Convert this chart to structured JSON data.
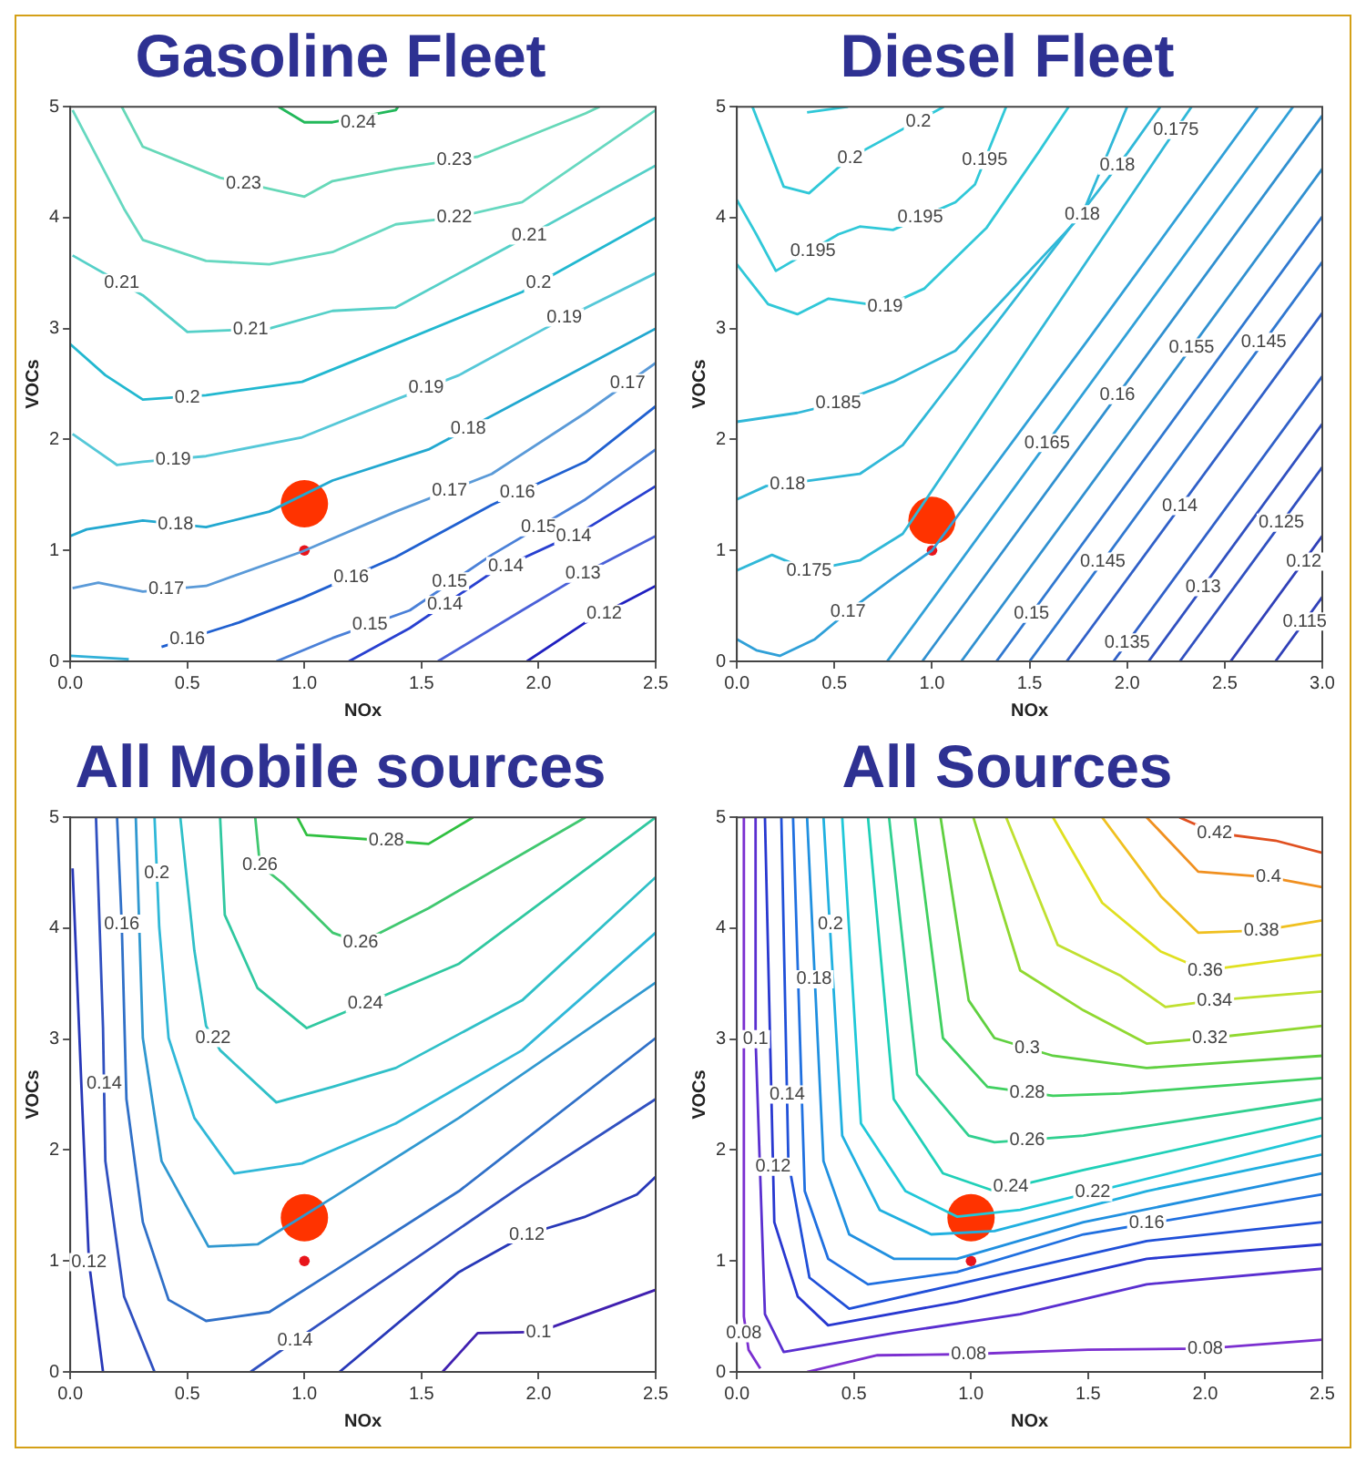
{
  "chart_data": [
    {
      "type": "line",
      "title": "Gasoline Fleet",
      "xlabel": "NOx",
      "ylabel": "VOCs",
      "xlim": [
        0,
        2.5
      ],
      "ylim": [
        0,
        5
      ],
      "xticks": [
        {
          "value": 0,
          "label": "0.0"
        },
        {
          "value": 0.5,
          "label": "0.5"
        },
        {
          "value": 1,
          "label": "1.0"
        },
        {
          "value": 1.5,
          "label": "1.5"
        },
        {
          "value": 2,
          "label": "2.0"
        },
        {
          "value": 2.5,
          "label": "2.5"
        }
      ],
      "yticks": [
        0,
        1,
        2,
        3,
        4,
        5
      ],
      "series": [
        {
          "color": "#22b85a",
          "x": [
            0.89,
            1.0,
            1.12,
            1.39,
            1.4
          ],
          "values": [
            5,
            4.86,
            4.86,
            4.97,
            5
          ]
        },
        {
          "color": "#66d8b8",
          "x": [
            0.22,
            0.31,
            0.64,
            1.0,
            1.12,
            1.39,
            1.74,
            2.2,
            2.26
          ],
          "values": [
            5,
            4.64,
            4.36,
            4.19,
            4.33,
            4.44,
            4.55,
            4.94,
            5
          ]
        },
        {
          "color": "#66d8c0",
          "x": [
            0.01,
            0.23,
            0.31,
            0.58,
            0.85,
            1.12,
            1.39,
            1.64,
            1.93,
            2.5
          ],
          "values": [
            4.97,
            4.08,
            3.8,
            3.61,
            3.58,
            3.69,
            3.94,
            4.0,
            4.14,
            4.97
          ]
        },
        {
          "color": "#55d0c8",
          "x": [
            0.01,
            0.31,
            0.5,
            0.85,
            1.12,
            1.39,
            1.88,
            2.5
          ],
          "values": [
            3.66,
            3.3,
            2.97,
            3.0,
            3.16,
            3.19,
            3.75,
            4.47
          ]
        },
        {
          "color": "#22b8d0",
          "x": [
            0,
            0.15,
            0.31,
            0.45,
            0.58,
            0.99,
            1.26,
            1.93,
            2.5
          ],
          "values": [
            2.86,
            2.58,
            2.36,
            2.38,
            2.4,
            2.52,
            2.75,
            3.33,
            4.0
          ]
        },
        {
          "color": "#55c8d8",
          "x": [
            0.01,
            0.2,
            0.31,
            0.58,
            0.99,
            1.39,
            1.66,
            2.07,
            2.5
          ],
          "values": [
            2.05,
            1.77,
            1.8,
            1.85,
            2.02,
            2.36,
            2.58,
            3.05,
            3.5
          ]
        },
        {
          "color": "#22a8d0",
          "x": [
            0,
            0.07,
            0.31,
            0.58,
            0.85,
            1.12,
            1.53,
            1.93,
            2.5
          ],
          "values": [
            1.13,
            1.19,
            1.27,
            1.21,
            1.35,
            1.63,
            1.91,
            2.36,
            3.0
          ]
        },
        {
          "color": "#5a9ad8",
          "x": [
            0.01,
            0.12,
            0.31,
            0.58,
            0.99,
            1.39,
            1.8,
            2.2,
            2.5
          ],
          "values": [
            0.66,
            0.71,
            0.63,
            0.68,
            0.99,
            1.35,
            1.69,
            2.24,
            2.69
          ]
        },
        {
          "color": "#2060d0",
          "x": [
            0.39,
            0.72,
            0.99,
            1.39,
            1.8,
            2.2,
            2.5
          ],
          "values": [
            0.13,
            0.35,
            0.57,
            0.94,
            1.41,
            1.8,
            2.3
          ]
        },
        {
          "color": "#4a80d8",
          "x": [
            0.88,
            1.12,
            1.45,
            1.8,
            2.2,
            2.5
          ],
          "values": [
            0,
            0.21,
            0.46,
            0.96,
            1.46,
            1.91
          ]
        },
        {
          "color": "#2840d0",
          "x": [
            1.19,
            1.45,
            1.8,
            2.2,
            2.5
          ],
          "values": [
            0,
            0.3,
            0.8,
            1.19,
            1.58
          ]
        },
        {
          "color": "#4a60d8",
          "x": [
            1.57,
            1.93,
            2.2,
            2.5
          ],
          "values": [
            0,
            0.46,
            0.8,
            1.13
          ]
        },
        {
          "color": "#2020c0",
          "x": [
            1.95,
            2.2,
            2.5
          ],
          "values": [
            0,
            0.35,
            0.68
          ]
        },
        {
          "color": "#30b0d8",
          "x": [
            0,
            0.25
          ],
          "values": [
            0.05,
            0.02
          ]
        },
        {
          "type": "bubble",
          "x": [
            1,
            1
          ],
          "values": [
            1.42,
            1
          ],
          "sizes": [
            1,
            0.05
          ],
          "colors": [
            "#ff3300",
            "#e8141a"
          ]
        }
      ],
      "annotations": [
        {
          "text": "0.24",
          "x": 1.23,
          "y": 4.86
        },
        {
          "text": "0.23",
          "x": 0.74,
          "y": 4.31
        },
        {
          "text": "0.23",
          "x": 1.64,
          "y": 4.52
        },
        {
          "text": "0.22",
          "x": 1.64,
          "y": 4.0
        },
        {
          "text": "0.21",
          "x": 0.22,
          "y": 3.41
        },
        {
          "text": "0.21",
          "x": 0.77,
          "y": 2.99
        },
        {
          "text": "0.21",
          "x": 1.96,
          "y": 3.84
        },
        {
          "text": "0.2",
          "x": 0.5,
          "y": 2.38
        },
        {
          "text": "0.2",
          "x": 2.0,
          "y": 3.41
        },
        {
          "text": "0.19",
          "x": 0.44,
          "y": 1.82
        },
        {
          "text": "0.19",
          "x": 1.52,
          "y": 2.47
        },
        {
          "text": "0.19",
          "x": 2.11,
          "y": 3.1
        },
        {
          "text": "0.18",
          "x": 0.45,
          "y": 1.24
        },
        {
          "text": "0.18",
          "x": 1.7,
          "y": 2.1
        },
        {
          "text": "0.17",
          "x": 0.41,
          "y": 0.65
        },
        {
          "text": "0.17",
          "x": 1.62,
          "y": 1.54
        },
        {
          "text": "0.17",
          "x": 2.38,
          "y": 2.51
        },
        {
          "text": "0.16",
          "x": 0.5,
          "y": 0.2
        },
        {
          "text": "0.16",
          "x": 1.2,
          "y": 0.76
        },
        {
          "text": "0.16",
          "x": 1.91,
          "y": 1.52
        },
        {
          "text": "0.15",
          "x": 1.28,
          "y": 0.33
        },
        {
          "text": "0.15",
          "x": 1.62,
          "y": 0.72
        },
        {
          "text": "0.15",
          "x": 2.0,
          "y": 1.21
        },
        {
          "text": "0.14",
          "x": 1.6,
          "y": 0.51
        },
        {
          "text": "0.14",
          "x": 1.86,
          "y": 0.86
        },
        {
          "text": "0.14",
          "x": 2.15,
          "y": 1.13
        },
        {
          "text": "0.13",
          "x": 2.19,
          "y": 0.79
        },
        {
          "text": "0.12",
          "x": 2.28,
          "y": 0.43
        }
      ]
    },
    {
      "type": "line",
      "title": "Diesel Fleet",
      "xlabel": "NOx",
      "ylabel": "VOCs",
      "xlim": [
        0,
        3
      ],
      "ylim": [
        0,
        5
      ],
      "xticks": [
        {
          "value": 0,
          "label": "0.0"
        },
        {
          "value": 0.5,
          "label": "0.5"
        },
        {
          "value": 1,
          "label": "1.0"
        },
        {
          "value": 1.5,
          "label": "1.5"
        },
        {
          "value": 2,
          "label": "2.0"
        },
        {
          "value": 2.5,
          "label": "2.5"
        },
        {
          "value": 3,
          "label": "3.0"
        }
      ],
      "yticks": [
        0,
        1,
        2,
        3,
        4,
        5
      ],
      "series": [
        {
          "color": "#30c8d8",
          "x": [
            0.36,
            0.57
          ],
          "values": [
            4.95,
            5
          ]
        },
        {
          "color": "#30c8d8",
          "x": [
            0.08,
            0.24,
            0.37,
            0.57,
            0.8,
            1.06
          ],
          "values": [
            5,
            4.28,
            4.22,
            4.53,
            4.75,
            5
          ]
        },
        {
          "color": "#30c8d8",
          "x": [
            0,
            0.1,
            0.2,
            0.52,
            0.63,
            0.8,
            1.12,
            1.22,
            1.38
          ],
          "values": [
            4.16,
            3.85,
            3.52,
            3.85,
            3.92,
            3.89,
            4.14,
            4.3,
            5
          ]
        },
        {
          "color": "#30c8d8",
          "x": [
            0,
            0.16,
            0.31,
            0.47,
            0.76,
            0.96,
            1.28,
            1.55,
            1.7
          ],
          "values": [
            3.58,
            3.22,
            3.13,
            3.27,
            3.2,
            3.36,
            3.91,
            4.6,
            5
          ]
        },
        {
          "color": "#30b8d8",
          "x": [
            0,
            0.31,
            0.52,
            0.8,
            1.12,
            1.77,
            2.0
          ],
          "values": [
            2.16,
            2.24,
            2.33,
            2.52,
            2.8,
            4.03,
            5
          ]
        },
        {
          "color": "#30b8d8",
          "x": [
            0,
            0.15,
            0.37,
            0.63,
            0.85,
            2.0,
            2.17
          ],
          "values": [
            1.46,
            1.58,
            1.63,
            1.69,
            1.95,
            4.58,
            5
          ]
        },
        {
          "color": "#30b8d8",
          "x": [
            0,
            0.18,
            0.37,
            0.63,
            0.85,
            2.19,
            2.33
          ],
          "values": [
            0.82,
            0.96,
            0.82,
            0.91,
            1.15,
            4.64,
            5
          ]
        },
        {
          "color": "#30a0d8",
          "x": [
            0,
            0.1,
            0.22,
            0.4,
            0.57,
            0.8,
            1.0,
            1.8,
            2.67
          ],
          "values": [
            0.2,
            0.1,
            0.05,
            0.2,
            0.45,
            0.75,
            1.0,
            2.9,
            5
          ]
        },
        {
          "color": "#30a0d8",
          "x": [
            0.77,
            2.85
          ],
          "values": [
            0,
            5
          ]
        },
        {
          "color": "#3090d0",
          "x": [
            0.95,
            3
          ],
          "values": [
            0,
            4.92
          ]
        },
        {
          "color": "#3090d0",
          "x": [
            1.15,
            3
          ],
          "values": [
            0,
            4.44
          ]
        },
        {
          "color": "#3078d0",
          "x": [
            1.33,
            3
          ],
          "values": [
            0,
            4.01
          ]
        },
        {
          "color": "#3078d0",
          "x": [
            1.5,
            3
          ],
          "values": [
            0,
            3.6
          ]
        },
        {
          "color": "#3060c8",
          "x": [
            1.69,
            3
          ],
          "values": [
            0,
            3.14
          ]
        },
        {
          "color": "#3060c8",
          "x": [
            1.93,
            3
          ],
          "values": [
            0,
            2.57
          ]
        },
        {
          "color": "#3050c0",
          "x": [
            2.11,
            3
          ],
          "values": [
            0,
            2.14
          ]
        },
        {
          "color": "#3050c0",
          "x": [
            2.27,
            3
          ],
          "values": [
            0,
            1.75
          ]
        },
        {
          "color": "#3040b8",
          "x": [
            2.53,
            3
          ],
          "values": [
            0,
            1.13
          ]
        },
        {
          "color": "#3040b8",
          "x": [
            2.76,
            3
          ],
          "values": [
            0,
            0.58
          ]
        },
        {
          "type": "bubble",
          "x": [
            1,
            1
          ],
          "values": [
            1.27,
            1
          ],
          "sizes": [
            1,
            0.05
          ],
          "colors": [
            "#ff3300",
            "#e8141a"
          ]
        }
      ],
      "annotations": [
        {
          "text": "0.2",
          "x": 0.58,
          "y": 4.54
        },
        {
          "text": "0.2",
          "x": 0.93,
          "y": 4.87
        },
        {
          "text": "0.195",
          "x": 0.39,
          "y": 3.7
        },
        {
          "text": "0.195",
          "x": 0.94,
          "y": 4.0
        },
        {
          "text": "0.195",
          "x": 1.27,
          "y": 4.52
        },
        {
          "text": "0.19",
          "x": 0.76,
          "y": 3.2
        },
        {
          "text": "0.185",
          "x": 0.52,
          "y": 2.33
        },
        {
          "text": "0.18",
          "x": 0.26,
          "y": 1.6
        },
        {
          "text": "0.18",
          "x": 1.77,
          "y": 4.03
        },
        {
          "text": "0.18",
          "x": 1.95,
          "y": 4.47
        },
        {
          "text": "0.175",
          "x": 0.37,
          "y": 0.82
        },
        {
          "text": "0.175",
          "x": 2.25,
          "y": 4.79
        },
        {
          "text": "0.17",
          "x": 0.57,
          "y": 0.45
        },
        {
          "text": "0.165",
          "x": 1.59,
          "y": 1.97
        },
        {
          "text": "0.16",
          "x": 1.95,
          "y": 2.4
        },
        {
          "text": "0.155",
          "x": 2.33,
          "y": 2.83
        },
        {
          "text": "0.15",
          "x": 1.51,
          "y": 0.43
        },
        {
          "text": "0.145",
          "x": 1.875,
          "y": 0.9
        },
        {
          "text": "0.145",
          "x": 2.7,
          "y": 2.88
        },
        {
          "text": "0.14",
          "x": 2.27,
          "y": 1.4
        },
        {
          "text": "0.135",
          "x": 2.0,
          "y": 0.17
        },
        {
          "text": "0.13",
          "x": 2.39,
          "y": 0.67
        },
        {
          "text": "0.125",
          "x": 2.79,
          "y": 1.25
        },
        {
          "text": "0.12",
          "x": 2.905,
          "y": 0.9
        },
        {
          "text": "0.115",
          "x": 2.91,
          "y": 0.36
        }
      ]
    },
    {
      "type": "line",
      "title": "All Mobile sources",
      "xlabel": "NOx",
      "ylabel": "VOCs",
      "xlim": [
        0,
        2.5
      ],
      "ylim": [
        0,
        5
      ],
      "xticks": [
        {
          "value": 0,
          "label": "0.0"
        },
        {
          "value": 0.5,
          "label": "0.5"
        },
        {
          "value": 1,
          "label": "1.0"
        },
        {
          "value": 1.5,
          "label": "1.5"
        },
        {
          "value": 2,
          "label": "2.0"
        },
        {
          "value": 2.5,
          "label": "2.5"
        }
      ],
      "yticks": [
        0,
        1,
        2,
        3,
        4,
        5
      ],
      "series": [
        {
          "color": "#30c040",
          "x": [
            0.97,
            1.01,
            1.35,
            1.53,
            1.72
          ],
          "values": [
            5,
            4.84,
            4.79,
            4.76,
            5
          ]
        },
        {
          "color": "#40c870",
          "x": [
            0.79,
            0.81,
            0.91,
            1.12,
            1.24,
            1.53,
            2.2
          ],
          "values": [
            5,
            4.57,
            4.4,
            3.96,
            3.87,
            4.18,
            5
          ]
        },
        {
          "color": "#30c8a0",
          "x": [
            0.64,
            0.66,
            0.8,
            1.01,
            1.26,
            1.66,
            2.5
          ],
          "values": [
            5,
            4.12,
            3.46,
            3.1,
            3.32,
            3.68,
            5
          ]
        },
        {
          "color": "#30c0c8",
          "x": [
            0.47,
            0.53,
            0.58,
            0.64,
            0.88,
            1.12,
            1.39,
            1.93,
            2.5
          ],
          "values": [
            5,
            3.8,
            3.12,
            2.9,
            2.43,
            2.57,
            2.74,
            3.35,
            4.46
          ]
        },
        {
          "color": "#30b8d8",
          "x": [
            0.36,
            0.38,
            0.42,
            0.53,
            0.7,
            0.99,
            1.39,
            1.93,
            2.5
          ],
          "values": [
            5,
            4.01,
            3.01,
            2.29,
            1.79,
            1.88,
            2.24,
            2.9,
            3.96
          ]
        },
        {
          "color": "#3098d0",
          "x": [
            0.28,
            0.31,
            0.39,
            0.59,
            0.8,
            1.12,
            1.66,
            2.5
          ],
          "values": [
            5,
            3.01,
            1.9,
            1.13,
            1.15,
            1.57,
            2.29,
            3.51
          ]
        },
        {
          "color": "#3070c8",
          "x": [
            0.2,
            0.22,
            0.24,
            0.31,
            0.42,
            0.58,
            0.85,
            1.12,
            1.66,
            2.5
          ],
          "values": [
            5,
            4.04,
            2.46,
            1.35,
            0.65,
            0.46,
            0.54,
            0.9,
            1.63,
            3.01
          ]
        },
        {
          "color": "#3050c0",
          "x": [
            0.11,
            0.14,
            0.15,
            0.23,
            0.36
          ],
          "values": [
            5,
            3.1,
            1.9,
            0.68,
            0
          ]
        },
        {
          "color": "#3050c0",
          "x": [
            0.77,
            0.96,
            1.39,
            1.93,
            2.5
          ],
          "values": [
            0,
            0.28,
            0.9,
            1.68,
            2.46
          ]
        },
        {
          "color": "#2838b8",
          "x": [
            0.01,
            0.05,
            0.08,
            0.14
          ],
          "values": [
            4.54,
            2.46,
            0.99,
            0
          ]
        },
        {
          "color": "#2838b8",
          "x": [
            1.15,
            1.66,
            1.95,
            2.2,
            2.42,
            2.5
          ],
          "values": [
            0,
            0.9,
            1.24,
            1.4,
            1.6,
            1.76
          ]
        },
        {
          "color": "#4020b0",
          "x": [
            1.59,
            1.74,
            2.0,
            2.5
          ],
          "values": [
            0,
            0.35,
            0.36,
            0.74
          ]
        },
        {
          "type": "bubble",
          "x": [
            1,
            1
          ],
          "values": [
            1.39,
            1
          ],
          "sizes": [
            1,
            0.05
          ],
          "colors": [
            "#ff3300",
            "#e8141a"
          ]
        }
      ],
      "annotations": [
        {
          "text": "0.28",
          "x": 1.35,
          "y": 4.79
        },
        {
          "text": "0.26",
          "x": 0.81,
          "y": 4.57
        },
        {
          "text": "0.26",
          "x": 1.24,
          "y": 3.87
        },
        {
          "text": "0.24",
          "x": 1.26,
          "y": 3.32
        },
        {
          "text": "0.22",
          "x": 0.61,
          "y": 3.01
        },
        {
          "text": "0.2",
          "x": 0.37,
          "y": 4.5
        },
        {
          "text": "0.16",
          "x": 0.22,
          "y": 4.04
        },
        {
          "text": "0.14",
          "x": 0.145,
          "y": 2.6
        },
        {
          "text": "0.12",
          "x": 0.08,
          "y": 0.99
        },
        {
          "text": "0.14",
          "x": 0.96,
          "y": 0.28
        },
        {
          "text": "0.12",
          "x": 1.95,
          "y": 1.24
        },
        {
          "text": "0.1",
          "x": 2.0,
          "y": 0.36
        }
      ]
    },
    {
      "type": "line",
      "title": "All Sources",
      "xlabel": "NOx",
      "ylabel": "VOCs",
      "xlim": [
        0,
        2.5
      ],
      "ylim": [
        0,
        5
      ],
      "xticks": [
        {
          "value": 0,
          "label": "0.0"
        },
        {
          "value": 0.5,
          "label": "0.5"
        },
        {
          "value": 1,
          "label": "1.0"
        },
        {
          "value": 1.5,
          "label": "1.5"
        },
        {
          "value": 2,
          "label": "2.0"
        },
        {
          "value": 2.5,
          "label": "2.5"
        }
      ],
      "yticks": [
        0,
        1,
        2,
        3,
        4,
        5
      ],
      "series": [
        {
          "color": "#7b2fd0",
          "x": [
            0.03,
            0.03,
            0.05,
            0.1
          ],
          "values": [
            5,
            0.5,
            0.2,
            0.03
          ]
        },
        {
          "color": "#7b2fd0",
          "x": [
            0.3,
            0.6,
            0.99,
            1.5,
            2.0,
            2.5
          ],
          "values": [
            0,
            0.15,
            0.16,
            0.2,
            0.21,
            0.29
          ]
        },
        {
          "color": "#5a2fd0",
          "x": [
            0.08,
            0.08,
            0.12,
            0.2,
            0.67,
            1.21,
            1.75,
            2.5
          ],
          "values": [
            5,
            3.0,
            0.52,
            0.18,
            0.35,
            0.52,
            0.79,
            0.93
          ]
        },
        {
          "color": "#2838d0",
          "x": [
            0.12,
            0.16,
            0.26,
            0.39,
            0.94,
            1.75,
            2.5
          ],
          "values": [
            5,
            1.35,
            0.68,
            0.42,
            0.63,
            1.02,
            1.15
          ]
        },
        {
          "color": "#2050d8",
          "x": [
            0.19,
            0.22,
            0.31,
            0.48,
            0.94,
            1.75,
            2.5
          ],
          "values": [
            5,
            1.9,
            0.85,
            0.57,
            0.79,
            1.18,
            1.35
          ]
        },
        {
          "color": "#2070e0",
          "x": [
            0.24,
            0.29,
            0.39,
            0.56,
            0.94,
            1.48,
            2.5
          ],
          "values": [
            5,
            1.63,
            1.02,
            0.79,
            0.9,
            1.24,
            1.6
          ]
        },
        {
          "color": "#2090e0",
          "x": [
            0.3,
            0.37,
            0.48,
            0.67,
            0.94,
            1.48,
            2.5
          ],
          "values": [
            5,
            1.9,
            1.24,
            1.02,
            1.02,
            1.35,
            1.79
          ]
        },
        {
          "color": "#20b0e0",
          "x": [
            0.37,
            0.45,
            0.61,
            0.83,
            1.1,
            1.75,
            2.5
          ],
          "values": [
            5,
            2.13,
            1.46,
            1.24,
            1.27,
            1.63,
            1.96
          ]
        },
        {
          "color": "#20c8d8",
          "x": [
            0.45,
            0.53,
            0.72,
            0.94,
            1.21,
            2.5
          ],
          "values": [
            5,
            2.24,
            1.63,
            1.4,
            1.46,
            2.13
          ]
        },
        {
          "color": "#20d0b8",
          "x": [
            0.56,
            0.67,
            0.88,
            1.1,
            1.48,
            2.5
          ],
          "values": [
            5,
            2.46,
            1.79,
            1.63,
            1.82,
            2.29
          ]
        },
        {
          "color": "#30d090",
          "x": [
            0.65,
            0.77,
            0.99,
            1.1,
            1.48,
            2.5
          ],
          "values": [
            5,
            2.68,
            2.13,
            2.07,
            2.13,
            2.46
          ]
        },
        {
          "color": "#40d060",
          "x": [
            0.76,
            0.88,
            1.07,
            1.35,
            1.64,
            2.5
          ],
          "values": [
            5,
            3.01,
            2.57,
            2.49,
            2.51,
            2.65
          ]
        },
        {
          "color": "#60d040",
          "x": [
            0.87,
            0.99,
            1.1,
            1.35,
            1.75,
            2.5
          ],
          "values": [
            5,
            3.35,
            3.01,
            2.85,
            2.74,
            2.85
          ]
        },
        {
          "color": "#90d830",
          "x": [
            1.01,
            1.21,
            1.48,
            1.75,
            2.02,
            2.5
          ],
          "values": [
            5,
            3.62,
            3.26,
            2.96,
            3.01,
            3.12
          ]
        },
        {
          "color": "#c0e030",
          "x": [
            1.15,
            1.37,
            1.64,
            1.83,
            2.04,
            2.5
          ],
          "values": [
            5,
            3.85,
            3.57,
            3.29,
            3.35,
            3.43
          ]
        },
        {
          "color": "#e0e020",
          "x": [
            1.35,
            1.56,
            1.81,
            2.0,
            2.5
          ],
          "values": [
            5,
            4.23,
            3.79,
            3.62,
            3.76
          ]
        },
        {
          "color": "#f0c020",
          "x": [
            1.56,
            1.81,
            1.97,
            2.24,
            2.5
          ],
          "values": [
            5,
            4.29,
            3.96,
            3.98,
            4.07
          ]
        },
        {
          "color": "#f09020",
          "x": [
            1.75,
            1.97,
            2.27,
            2.5
          ],
          "values": [
            5,
            4.51,
            4.46,
            4.37
          ]
        },
        {
          "color": "#e05020",
          "x": [
            1.89,
            2.04,
            2.3,
            2.5
          ],
          "values": [
            5,
            4.86,
            4.79,
            4.68
          ]
        },
        {
          "type": "bubble",
          "x": [
            1,
            1
          ],
          "values": [
            1.39,
            1
          ],
          "sizes": [
            1,
            0.05
          ],
          "colors": [
            "#ff3300",
            "#e8141a"
          ]
        }
      ],
      "annotations": [
        {
          "text": "0.08",
          "x": 0.03,
          "y": 0.35
        },
        {
          "text": "0.08",
          "x": 0.99,
          "y": 0.16
        },
        {
          "text": "0.08",
          "x": 2.0,
          "y": 0.21
        },
        {
          "text": "0.1",
          "x": 0.08,
          "y": 3.0
        },
        {
          "text": "0.12",
          "x": 0.155,
          "y": 1.85
        },
        {
          "text": "0.14",
          "x": 0.215,
          "y": 2.5
        },
        {
          "text": "0.16",
          "x": 1.75,
          "y": 1.34
        },
        {
          "text": "0.18",
          "x": 0.33,
          "y": 3.54
        },
        {
          "text": "0.2",
          "x": 0.4,
          "y": 4.04
        },
        {
          "text": "0.22",
          "x": 1.52,
          "y": 1.62
        },
        {
          "text": "0.24",
          "x": 1.17,
          "y": 1.67
        },
        {
          "text": "0.26",
          "x": 1.24,
          "y": 2.09
        },
        {
          "text": "0.28",
          "x": 1.24,
          "y": 2.52
        },
        {
          "text": "0.3",
          "x": 1.24,
          "y": 2.92
        },
        {
          "text": "0.32",
          "x": 2.02,
          "y": 3.01
        },
        {
          "text": "0.34",
          "x": 2.04,
          "y": 3.35
        },
        {
          "text": "0.36",
          "x": 2.0,
          "y": 3.62
        },
        {
          "text": "0.38",
          "x": 2.24,
          "y": 3.98
        },
        {
          "text": "0.4",
          "x": 2.27,
          "y": 4.46
        },
        {
          "text": "0.42",
          "x": 2.04,
          "y": 4.86
        }
      ]
    }
  ]
}
